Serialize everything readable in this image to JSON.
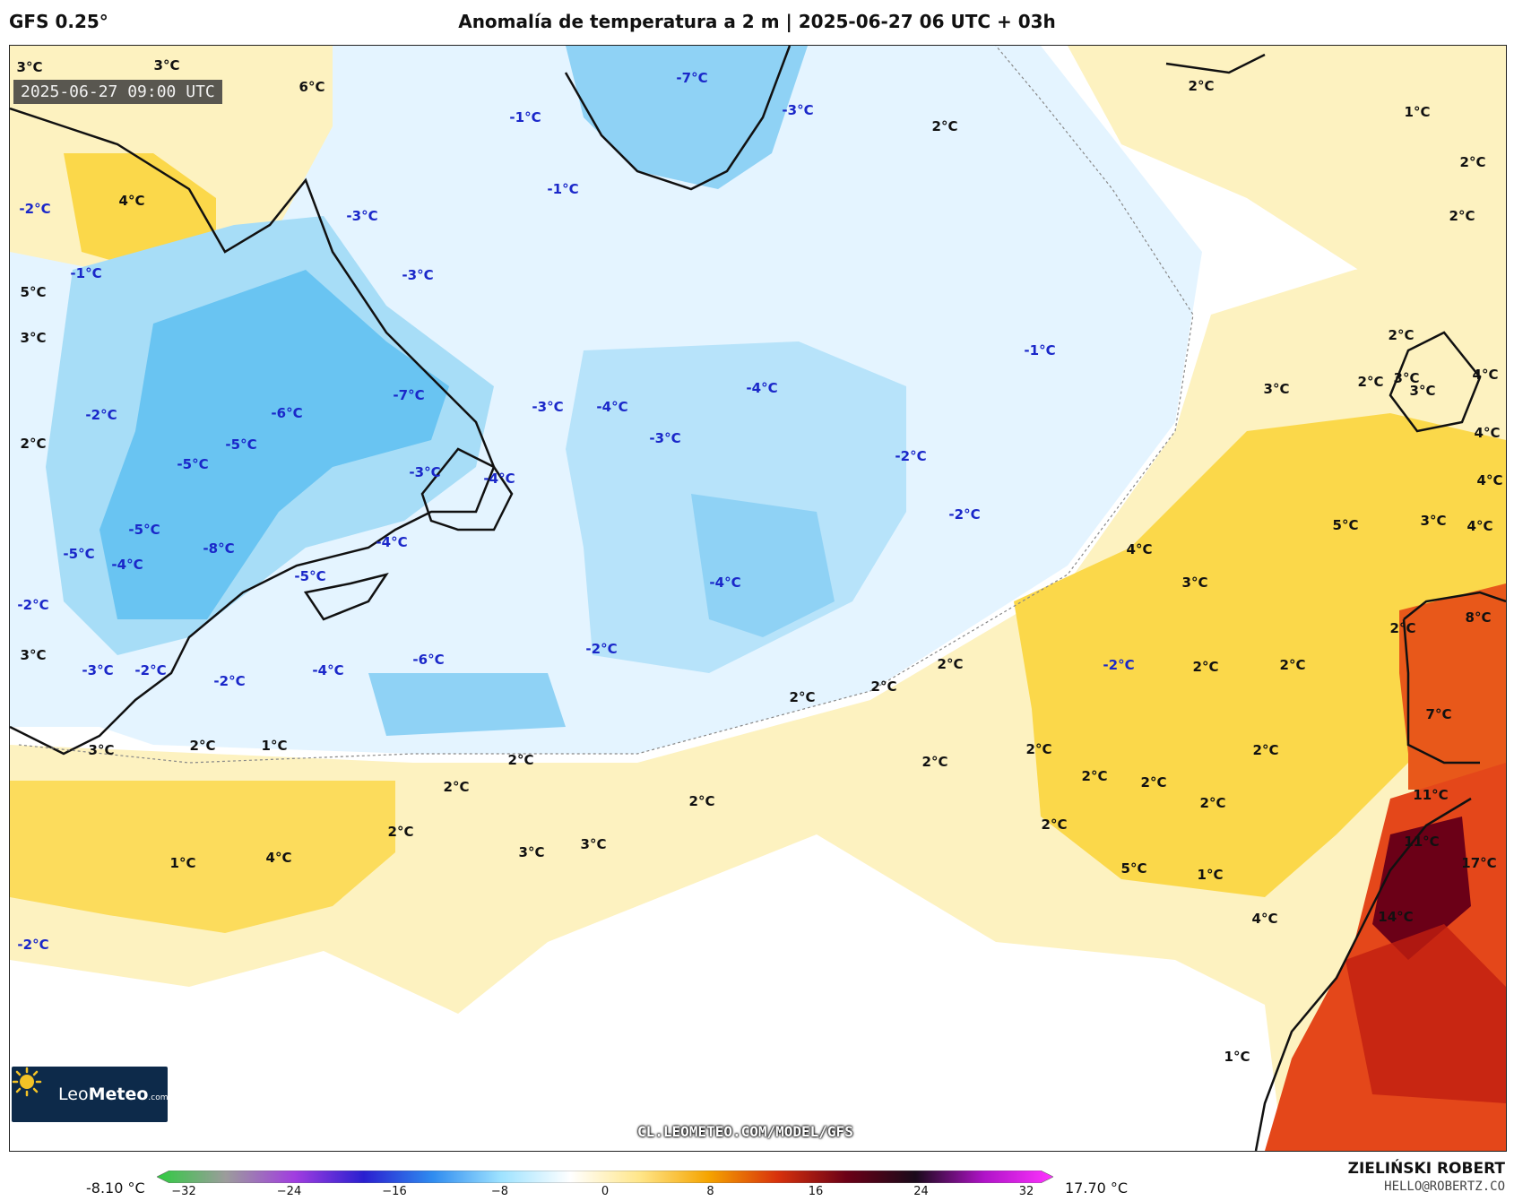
{
  "header": {
    "model": "GFS 0.25°",
    "title": "Anomalía de temperatura a 2 m | 2025-06-27 06 UTC + 03h"
  },
  "map": {
    "valid_time": "2025-06-27 09:00 UTC",
    "url": "CL.LEOMETEO.COM/MODEL/GFS",
    "logo": {
      "brand_light": "Leo",
      "brand_bold": "Meteo",
      "suffix": ".com"
    },
    "labels": [
      {
        "text": "3°C",
        "sign": "pos"
      },
      {
        "text": "3°C",
        "sign": "pos"
      },
      {
        "text": "6°C",
        "sign": "pos"
      },
      {
        "text": "4°C",
        "sign": "pos"
      },
      {
        "text": "-2°C",
        "sign": "neg"
      },
      {
        "text": "-1°C",
        "sign": "neg"
      },
      {
        "text": "5°C",
        "sign": "pos"
      },
      {
        "text": "3°C",
        "sign": "pos"
      },
      {
        "text": "-2°C",
        "sign": "neg"
      },
      {
        "text": "2°C",
        "sign": "pos"
      },
      {
        "text": "-5°C",
        "sign": "neg"
      },
      {
        "text": "-5°C",
        "sign": "neg"
      },
      {
        "text": "-6°C",
        "sign": "neg"
      },
      {
        "text": "-7°C",
        "sign": "neg"
      },
      {
        "text": "-5°C",
        "sign": "neg"
      },
      {
        "text": "-5°C",
        "sign": "neg"
      },
      {
        "text": "-4°C",
        "sign": "neg"
      },
      {
        "text": "-8°C",
        "sign": "neg"
      },
      {
        "text": "-5°C",
        "sign": "neg"
      },
      {
        "text": "-4°C",
        "sign": "neg"
      },
      {
        "text": "-2°C",
        "sign": "neg"
      },
      {
        "text": "3°C",
        "sign": "pos"
      },
      {
        "text": "-3°C",
        "sign": "neg"
      },
      {
        "text": "-2°C",
        "sign": "neg"
      },
      {
        "text": "-2°C",
        "sign": "neg"
      },
      {
        "text": "-4°C",
        "sign": "neg"
      },
      {
        "text": "-6°C",
        "sign": "neg"
      },
      {
        "text": "-2°C",
        "sign": "neg"
      },
      {
        "text": "-3°C",
        "sign": "neg"
      },
      {
        "text": "-4°C",
        "sign": "neg"
      },
      {
        "text": "-7°C",
        "sign": "neg"
      },
      {
        "text": "-1°C",
        "sign": "neg"
      },
      {
        "text": "-1°C",
        "sign": "neg"
      },
      {
        "text": "-3°C",
        "sign": "neg"
      },
      {
        "text": "-3°C",
        "sign": "neg"
      },
      {
        "text": "-3°C",
        "sign": "neg"
      },
      {
        "text": "-4°C",
        "sign": "neg"
      },
      {
        "text": "-3°C",
        "sign": "neg"
      },
      {
        "text": "-4°C",
        "sign": "neg"
      },
      {
        "text": "-4°C",
        "sign": "neg"
      },
      {
        "text": "-1°C",
        "sign": "neg"
      },
      {
        "text": "-2°C",
        "sign": "neg"
      },
      {
        "text": "-2°C",
        "sign": "neg"
      },
      {
        "text": "-3°C",
        "sign": "neg"
      },
      {
        "text": "2°C",
        "sign": "pos"
      },
      {
        "text": "2°C",
        "sign": "pos"
      },
      {
        "text": "1°C",
        "sign": "pos"
      },
      {
        "text": "2°C",
        "sign": "pos"
      },
      {
        "text": "2°C",
        "sign": "pos"
      },
      {
        "text": "2°C",
        "sign": "pos"
      },
      {
        "text": "2°C",
        "sign": "pos"
      },
      {
        "text": "3°C",
        "sign": "pos"
      },
      {
        "text": "3°C",
        "sign": "pos"
      },
      {
        "text": "4°C",
        "sign": "pos"
      },
      {
        "text": "4°C",
        "sign": "pos"
      },
      {
        "text": "4°C",
        "sign": "pos"
      },
      {
        "text": "5°C",
        "sign": "pos"
      },
      {
        "text": "3°C",
        "sign": "pos"
      },
      {
        "text": "4°C",
        "sign": "pos"
      },
      {
        "text": "4°C",
        "sign": "pos"
      },
      {
        "text": "3°C",
        "sign": "pos"
      },
      {
        "text": "3°C",
        "sign": "pos"
      },
      {
        "text": "2°C",
        "sign": "pos"
      },
      {
        "text": "8°C",
        "sign": "pos"
      },
      {
        "text": "7°C",
        "sign": "pos"
      },
      {
        "text": "11°C",
        "sign": "pos"
      },
      {
        "text": "11°C",
        "sign": "pos"
      },
      {
        "text": "17°C",
        "sign": "pos"
      },
      {
        "text": "14°C",
        "sign": "pos"
      },
      {
        "text": "4°C",
        "sign": "pos"
      },
      {
        "text": "5°C",
        "sign": "pos"
      },
      {
        "text": "1°C",
        "sign": "pos"
      },
      {
        "text": "1°C",
        "sign": "pos"
      },
      {
        "text": "-2°C",
        "sign": "neg"
      },
      {
        "text": "2°C",
        "sign": "pos"
      },
      {
        "text": "2°C",
        "sign": "pos"
      },
      {
        "text": "2°C",
        "sign": "pos"
      },
      {
        "text": "2°C",
        "sign": "pos"
      },
      {
        "text": "2°C",
        "sign": "pos"
      },
      {
        "text": "2°C",
        "sign": "pos"
      },
      {
        "text": "2°C",
        "sign": "pos"
      },
      {
        "text": "2°C",
        "sign": "pos"
      },
      {
        "text": "2°C",
        "sign": "pos"
      },
      {
        "text": "2°C",
        "sign": "pos"
      },
      {
        "text": "2°C",
        "sign": "pos"
      },
      {
        "text": "2°C",
        "sign": "pos"
      },
      {
        "text": "2°C",
        "sign": "pos"
      },
      {
        "text": "2°C",
        "sign": "pos"
      },
      {
        "text": "2°C",
        "sign": "pos"
      },
      {
        "text": "2°C",
        "sign": "pos"
      },
      {
        "text": "3°C",
        "sign": "pos"
      },
      {
        "text": "3°C",
        "sign": "pos"
      },
      {
        "text": "4°C",
        "sign": "pos"
      },
      {
        "text": "3°C",
        "sign": "pos"
      },
      {
        "text": "2°C",
        "sign": "pos"
      },
      {
        "text": "1°C",
        "sign": "pos"
      },
      {
        "text": "1°C",
        "sign": "pos"
      },
      {
        "text": "-2°C",
        "sign": "neg"
      }
    ]
  },
  "colorbar": {
    "min_label": "-8.10 °C",
    "max_label": "17.70 °C",
    "ticks": [
      "−32",
      "−24",
      "−16",
      "−8",
      "0",
      "8",
      "16",
      "24",
      "32"
    ],
    "colors": [
      "#2ecc40",
      "#9c9c9c",
      "#a13de0",
      "#2a1fd0",
      "#2f8cf0",
      "#9fe3ff",
      "#ffffff",
      "#ffe68a",
      "#f5a400",
      "#d8320c",
      "#6b0017",
      "#1a0a1a",
      "#b013c8",
      "#ff33ff"
    ]
  },
  "credits": {
    "author": "ZIELIŃSKI ROBERT",
    "email": "HELLO@ROBERTZ.CO"
  }
}
